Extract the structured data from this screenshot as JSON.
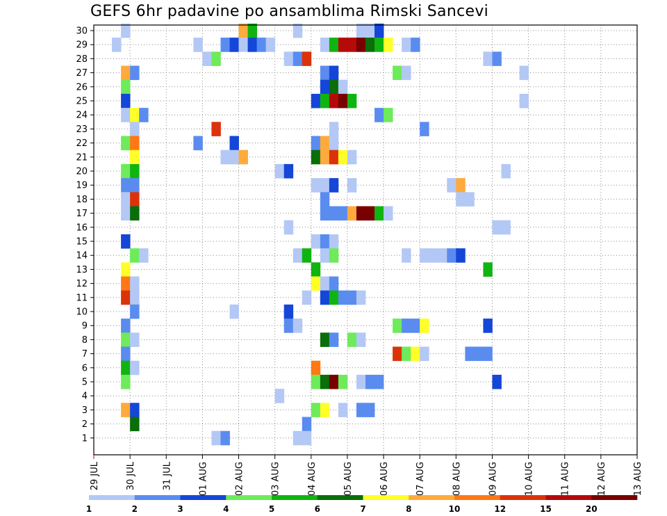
{
  "title": "GEFS 6hr padavine po ansamblima Rimski Sancevi",
  "chart_data": {
    "type": "heatmap",
    "title": "GEFS 6hr padavine po ansamblima Rimski Sancevi",
    "x_start_label": "29 JUL",
    "x_step_hours": 6,
    "x_tick_labels": [
      "29 JUL",
      "30 JUL",
      "31 JUL",
      "01 AUG",
      "02 AUG",
      "03 AUG",
      "04 AUG",
      "05 AUG",
      "06 AUG",
      "07 AUG",
      "08 AUG",
      "09 AUG",
      "10 AUG",
      "11 AUG",
      "12 AUG",
      "13 AUG"
    ],
    "y_tick_labels": [
      "1",
      "2",
      "3",
      "4",
      "5",
      "6",
      "7",
      "8",
      "9",
      "10",
      "11",
      "12",
      "13",
      "14",
      "15",
      "16",
      "17",
      "18",
      "19",
      "20",
      "21",
      "22",
      "23",
      "24",
      "25",
      "26",
      "27",
      "28",
      "29",
      "30"
    ],
    "grid": true,
    "colorbar": {
      "placement": "bottom",
      "labels": [
        "1",
        "2",
        "3",
        "4",
        "5",
        "6",
        "7",
        "8",
        "10",
        "12",
        "15",
        "20"
      ],
      "colors": [
        "#b4c8f5",
        "#5a8cf0",
        "#1446d7",
        "#6eeb5a",
        "#10b410",
        "#0a6e0a",
        "#ffff28",
        "#ffaa3c",
        "#ff7814",
        "#dc320a",
        "#b40a0a",
        "#780000"
      ]
    },
    "cells": [
      {
        "m": 30,
        "t": 3,
        "c": 0
      },
      {
        "m": 30,
        "t": 16,
        "c": 7
      },
      {
        "m": 30,
        "t": 17,
        "c": 4
      },
      {
        "m": 30,
        "t": 22,
        "c": 0
      },
      {
        "m": 30,
        "t": 29,
        "c": 0
      },
      {
        "m": 30,
        "t": 30,
        "c": 0
      },
      {
        "m": 30,
        "t": 31,
        "c": 2
      },
      {
        "m": 29,
        "t": 2,
        "c": 0
      },
      {
        "m": 29,
        "t": 11,
        "c": 0
      },
      {
        "m": 29,
        "t": 14,
        "c": 1
      },
      {
        "m": 29,
        "t": 15,
        "c": 2
      },
      {
        "m": 29,
        "t": 16,
        "c": 0
      },
      {
        "m": 29,
        "t": 17,
        "c": 2
      },
      {
        "m": 29,
        "t": 18,
        "c": 1
      },
      {
        "m": 29,
        "t": 19,
        "c": 0
      },
      {
        "m": 29,
        "t": 25,
        "c": 0
      },
      {
        "m": 29,
        "t": 26,
        "c": 4
      },
      {
        "m": 29,
        "t": 27,
        "c": 10
      },
      {
        "m": 29,
        "t": 28,
        "c": 10
      },
      {
        "m": 29,
        "t": 29,
        "c": 11
      },
      {
        "m": 29,
        "t": 30,
        "c": 5
      },
      {
        "m": 29,
        "t": 31,
        "c": 4
      },
      {
        "m": 29,
        "t": 32,
        "c": 6
      },
      {
        "m": 29,
        "t": 34,
        "c": 0
      },
      {
        "m": 29,
        "t": 35,
        "c": 1
      },
      {
        "m": 28,
        "t": 12,
        "c": 0
      },
      {
        "m": 28,
        "t": 13,
        "c": 3
      },
      {
        "m": 28,
        "t": 21,
        "c": 0
      },
      {
        "m": 28,
        "t": 22,
        "c": 1
      },
      {
        "m": 28,
        "t": 23,
        "c": 9
      },
      {
        "m": 28,
        "t": 43,
        "c": 0
      },
      {
        "m": 28,
        "t": 44,
        "c": 1
      },
      {
        "m": 27,
        "t": 3,
        "c": 7
      },
      {
        "m": 27,
        "t": 4,
        "c": 1
      },
      {
        "m": 27,
        "t": 25,
        "c": 1
      },
      {
        "m": 27,
        "t": 26,
        "c": 2
      },
      {
        "m": 27,
        "t": 33,
        "c": 3
      },
      {
        "m": 27,
        "t": 34,
        "c": 0
      },
      {
        "m": 27,
        "t": 47,
        "c": 0
      },
      {
        "m": 26,
        "t": 3,
        "c": 3
      },
      {
        "m": 26,
        "t": 25,
        "c": 2
      },
      {
        "m": 26,
        "t": 26,
        "c": 5
      },
      {
        "m": 26,
        "t": 27,
        "c": 0
      },
      {
        "m": 25,
        "t": 3,
        "c": 2
      },
      {
        "m": 25,
        "t": 24,
        "c": 2
      },
      {
        "m": 25,
        "t": 25,
        "c": 4
      },
      {
        "m": 25,
        "t": 26,
        "c": 10
      },
      {
        "m": 25,
        "t": 27,
        "c": 11
      },
      {
        "m": 25,
        "t": 28,
        "c": 4
      },
      {
        "m": 25,
        "t": 47,
        "c": 0
      },
      {
        "m": 24,
        "t": 3,
        "c": 0
      },
      {
        "m": 24,
        "t": 4,
        "c": 6
      },
      {
        "m": 24,
        "t": 5,
        "c": 1
      },
      {
        "m": 24,
        "t": 31,
        "c": 1
      },
      {
        "m": 24,
        "t": 32,
        "c": 3
      },
      {
        "m": 23,
        "t": 4,
        "c": 0
      },
      {
        "m": 23,
        "t": 13,
        "c": 9
      },
      {
        "m": 23,
        "t": 26,
        "c": 0
      },
      {
        "m": 23,
        "t": 36,
        "c": 1
      },
      {
        "m": 22,
        "t": 3,
        "c": 3
      },
      {
        "m": 22,
        "t": 4,
        "c": 8
      },
      {
        "m": 22,
        "t": 11,
        "c": 1
      },
      {
        "m": 22,
        "t": 15,
        "c": 2
      },
      {
        "m": 22,
        "t": 24,
        "c": 1
      },
      {
        "m": 22,
        "t": 25,
        "c": 7
      },
      {
        "m": 22,
        "t": 26,
        "c": 0
      },
      {
        "m": 21,
        "t": 4,
        "c": 6
      },
      {
        "m": 21,
        "t": 14,
        "c": 0
      },
      {
        "m": 21,
        "t": 15,
        "c": 0
      },
      {
        "m": 21,
        "t": 16,
        "c": 7
      },
      {
        "m": 21,
        "t": 24,
        "c": 5
      },
      {
        "m": 21,
        "t": 25,
        "c": 7
      },
      {
        "m": 21,
        "t": 26,
        "c": 9
      },
      {
        "m": 21,
        "t": 27,
        "c": 6
      },
      {
        "m": 21,
        "t": 28,
        "c": 0
      },
      {
        "m": 20,
        "t": 3,
        "c": 3
      },
      {
        "m": 20,
        "t": 4,
        "c": 4
      },
      {
        "m": 20,
        "t": 20,
        "c": 0
      },
      {
        "m": 20,
        "t": 21,
        "c": 2
      },
      {
        "m": 20,
        "t": 45,
        "c": 0
      },
      {
        "m": 19,
        "t": 3,
        "c": 1
      },
      {
        "m": 19,
        "t": 4,
        "c": 1
      },
      {
        "m": 19,
        "t": 24,
        "c": 0
      },
      {
        "m": 19,
        "t": 25,
        "c": 0
      },
      {
        "m": 19,
        "t": 26,
        "c": 2
      },
      {
        "m": 19,
        "t": 28,
        "c": 0
      },
      {
        "m": 19,
        "t": 39,
        "c": 0
      },
      {
        "m": 19,
        "t": 40,
        "c": 7
      },
      {
        "m": 18,
        "t": 3,
        "c": 0
      },
      {
        "m": 18,
        "t": 4,
        "c": 9
      },
      {
        "m": 18,
        "t": 25,
        "c": 1
      },
      {
        "m": 18,
        "t": 40,
        "c": 0
      },
      {
        "m": 18,
        "t": 41,
        "c": 0
      },
      {
        "m": 17,
        "t": 3,
        "c": 0
      },
      {
        "m": 17,
        "t": 4,
        "c": 5
      },
      {
        "m": 17,
        "t": 25,
        "c": 1
      },
      {
        "m": 17,
        "t": 26,
        "c": 1
      },
      {
        "m": 17,
        "t": 27,
        "c": 1
      },
      {
        "m": 17,
        "t": 28,
        "c": 7
      },
      {
        "m": 17,
        "t": 29,
        "c": 11
      },
      {
        "m": 17,
        "t": 30,
        "c": 11
      },
      {
        "m": 17,
        "t": 31,
        "c": 4
      },
      {
        "m": 17,
        "t": 32,
        "c": 0
      },
      {
        "m": 16,
        "t": 21,
        "c": 0
      },
      {
        "m": 16,
        "t": 44,
        "c": 0
      },
      {
        "m": 16,
        "t": 45,
        "c": 0
      },
      {
        "m": 15,
        "t": 3,
        "c": 2
      },
      {
        "m": 15,
        "t": 24,
        "c": 0
      },
      {
        "m": 15,
        "t": 25,
        "c": 1
      },
      {
        "m": 15,
        "t": 26,
        "c": 0
      },
      {
        "m": 14,
        "t": 4,
        "c": 3
      },
      {
        "m": 14,
        "t": 5,
        "c": 0
      },
      {
        "m": 14,
        "t": 22,
        "c": 0
      },
      {
        "m": 14,
        "t": 23,
        "c": 4
      },
      {
        "m": 14,
        "t": 25,
        "c": 0
      },
      {
        "m": 14,
        "t": 26,
        "c": 3
      },
      {
        "m": 14,
        "t": 34,
        "c": 0
      },
      {
        "m": 14,
        "t": 36,
        "c": 0
      },
      {
        "m": 14,
        "t": 37,
        "c": 0
      },
      {
        "m": 14,
        "t": 38,
        "c": 0
      },
      {
        "m": 14,
        "t": 39,
        "c": 1
      },
      {
        "m": 14,
        "t": 40,
        "c": 2
      },
      {
        "m": 13,
        "t": 3,
        "c": 6
      },
      {
        "m": 13,
        "t": 24,
        "c": 4
      },
      {
        "m": 13,
        "t": 43,
        "c": 4
      },
      {
        "m": 12,
        "t": 3,
        "c": 8
      },
      {
        "m": 12,
        "t": 4,
        "c": 0
      },
      {
        "m": 12,
        "t": 24,
        "c": 6
      },
      {
        "m": 12,
        "t": 25,
        "c": 0
      },
      {
        "m": 12,
        "t": 26,
        "c": 1
      },
      {
        "m": 11,
        "t": 3,
        "c": 9
      },
      {
        "m": 11,
        "t": 4,
        "c": 0
      },
      {
        "m": 11,
        "t": 23,
        "c": 0
      },
      {
        "m": 11,
        "t": 25,
        "c": 2
      },
      {
        "m": 11,
        "t": 26,
        "c": 4
      },
      {
        "m": 11,
        "t": 27,
        "c": 1
      },
      {
        "m": 11,
        "t": 28,
        "c": 1
      },
      {
        "m": 11,
        "t": 29,
        "c": 0
      },
      {
        "m": 10,
        "t": 4,
        "c": 1
      },
      {
        "m": 10,
        "t": 15,
        "c": 0
      },
      {
        "m": 10,
        "t": 21,
        "c": 2
      },
      {
        "m": 9,
        "t": 3,
        "c": 1
      },
      {
        "m": 9,
        "t": 21,
        "c": 1
      },
      {
        "m": 9,
        "t": 22,
        "c": 0
      },
      {
        "m": 9,
        "t": 33,
        "c": 3
      },
      {
        "m": 9,
        "t": 34,
        "c": 1
      },
      {
        "m": 9,
        "t": 35,
        "c": 1
      },
      {
        "m": 9,
        "t": 36,
        "c": 6
      },
      {
        "m": 9,
        "t": 43,
        "c": 2
      },
      {
        "m": 8,
        "t": 3,
        "c": 3
      },
      {
        "m": 8,
        "t": 4,
        "c": 0
      },
      {
        "m": 8,
        "t": 25,
        "c": 5
      },
      {
        "m": 8,
        "t": 26,
        "c": 1
      },
      {
        "m": 8,
        "t": 28,
        "c": 3
      },
      {
        "m": 8,
        "t": 29,
        "c": 0
      },
      {
        "m": 7,
        "t": 3,
        "c": 1
      },
      {
        "m": 7,
        "t": 33,
        "c": 9
      },
      {
        "m": 7,
        "t": 34,
        "c": 3
      },
      {
        "m": 7,
        "t": 35,
        "c": 6
      },
      {
        "m": 7,
        "t": 36,
        "c": 0
      },
      {
        "m": 7,
        "t": 41,
        "c": 1
      },
      {
        "m": 7,
        "t": 42,
        "c": 1
      },
      {
        "m": 7,
        "t": 43,
        "c": 1
      },
      {
        "m": 6,
        "t": 3,
        "c": 4
      },
      {
        "m": 6,
        "t": 4,
        "c": 0
      },
      {
        "m": 6,
        "t": 24,
        "c": 8
      },
      {
        "m": 5,
        "t": 3,
        "c": 3
      },
      {
        "m": 5,
        "t": 24,
        "c": 3
      },
      {
        "m": 5,
        "t": 25,
        "c": 5
      },
      {
        "m": 5,
        "t": 26,
        "c": 11
      },
      {
        "m": 5,
        "t": 27,
        "c": 3
      },
      {
        "m": 5,
        "t": 29,
        "c": 0
      },
      {
        "m": 5,
        "t": 30,
        "c": 1
      },
      {
        "m": 5,
        "t": 31,
        "c": 1
      },
      {
        "m": 5,
        "t": 44,
        "c": 2
      },
      {
        "m": 4,
        "t": 20,
        "c": 0
      },
      {
        "m": 3,
        "t": 3,
        "c": 7
      },
      {
        "m": 3,
        "t": 4,
        "c": 2
      },
      {
        "m": 3,
        "t": 24,
        "c": 3
      },
      {
        "m": 3,
        "t": 25,
        "c": 6
      },
      {
        "m": 3,
        "t": 27,
        "c": 0
      },
      {
        "m": 3,
        "t": 29,
        "c": 1
      },
      {
        "m": 3,
        "t": 30,
        "c": 1
      },
      {
        "m": 2,
        "t": 4,
        "c": 5
      },
      {
        "m": 2,
        "t": 23,
        "c": 1
      },
      {
        "m": 1,
        "t": 13,
        "c": 0
      },
      {
        "m": 1,
        "t": 14,
        "c": 1
      },
      {
        "m": 1,
        "t": 22,
        "c": 0
      },
      {
        "m": 1,
        "t": 23,
        "c": 0
      }
    ]
  }
}
